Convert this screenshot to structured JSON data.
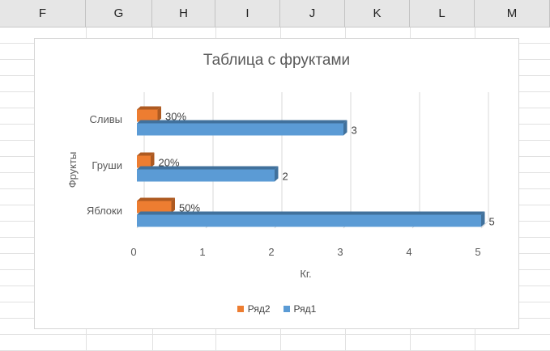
{
  "sheet": {
    "columns": [
      "F",
      "G",
      "H",
      "I",
      "J",
      "K",
      "L",
      "M"
    ]
  },
  "colors": {
    "series1": "#5b9bd5",
    "series1_dark": "#41719c",
    "series2": "#ed7d31",
    "series2_dark": "#ae5a21",
    "axis_text": "#595959",
    "gridline": "#d9d9d9"
  },
  "chart_data": {
    "type": "bar",
    "orientation": "horizontal",
    "style": "3d-clustered",
    "title": "Таблица с фруктами",
    "xlabel": "Кг.",
    "ylabel": "Фрукты",
    "xlim": [
      0,
      5
    ],
    "xticks": [
      0,
      1,
      2,
      3,
      4,
      5
    ],
    "grid": true,
    "legend_position": "bottom",
    "categories": [
      "Яблоки",
      "Груши",
      "Сливы"
    ],
    "series": [
      {
        "name": "Ряд2",
        "values": [
          0.5,
          0.2,
          0.3
        ],
        "labels": [
          "50%",
          "20%",
          "30%"
        ]
      },
      {
        "name": "Ряд1",
        "values": [
          5,
          2,
          3
        ],
        "labels": [
          "5",
          "2",
          "3"
        ]
      }
    ],
    "legend": [
      "Ряд2",
      "Ряд1"
    ]
  }
}
